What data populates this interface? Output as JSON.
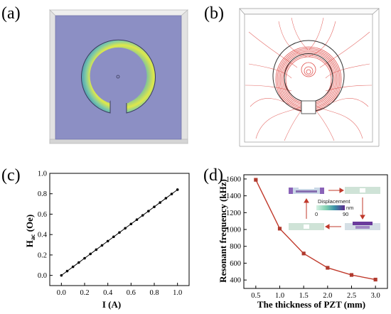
{
  "panels": {
    "a": {
      "label": "(a)"
    },
    "b": {
      "label": "(b)"
    },
    "c": {
      "label": "(c)"
    },
    "d": {
      "label": "(d)"
    }
  },
  "colors": {
    "sim_background": "#8c8fc4",
    "ring_teal": "#5fb6b7",
    "ring_yellow": "#dfe84a",
    "field_lines": "#e0524e",
    "line_d": "#c0392b",
    "marker_d": "#b03a2e",
    "marker_c": "#000000"
  },
  "chart_data": [
    {
      "panel": "c",
      "type": "line",
      "xlabel": "I (A)",
      "ylabel": "H",
      "ylabel_subscript": "ac",
      "ylabel_unit": " (Oe)",
      "xlim": [
        -0.1,
        1.1
      ],
      "ylim": [
        -0.1,
        1.0
      ],
      "xticks": [
        "0.0",
        "0.2",
        "0.4",
        "0.6",
        "0.8",
        "1.0"
      ],
      "yticks": [
        "0.0",
        "0.2",
        "0.4",
        "0.6",
        "0.8",
        "1.0"
      ],
      "x": [
        0.0,
        0.05,
        0.1,
        0.15,
        0.2,
        0.25,
        0.3,
        0.35,
        0.4,
        0.45,
        0.5,
        0.55,
        0.6,
        0.65,
        0.7,
        0.75,
        0.8,
        0.85,
        0.9,
        0.95,
        1.0
      ],
      "y": [
        0.0,
        0.042,
        0.084,
        0.126,
        0.168,
        0.21,
        0.252,
        0.294,
        0.336,
        0.378,
        0.42,
        0.462,
        0.504,
        0.546,
        0.588,
        0.63,
        0.672,
        0.714,
        0.756,
        0.798,
        0.84
      ]
    },
    {
      "panel": "d",
      "type": "line",
      "xlabel": "The thickness of PZT (mm)",
      "ylabel": "Resonant frequency (kHz)",
      "xlim": [
        0.25,
        3.25
      ],
      "ylim": [
        300,
        1650
      ],
      "xticks": [
        "0.5",
        "1.0",
        "1.5",
        "2.0",
        "2.5",
        "3.0"
      ],
      "yticks": [
        "400",
        "600",
        "800",
        "1000",
        "1200",
        "1400",
        "1600"
      ],
      "x": [
        0.5,
        1.0,
        1.5,
        2.0,
        2.5,
        3.0
      ],
      "y": [
        1590,
        1010,
        715,
        545,
        460,
        405
      ],
      "inset": {
        "legend_title": "Displacement",
        "unit": "nm",
        "min_label": "0",
        "max_label": "90"
      }
    }
  ]
}
